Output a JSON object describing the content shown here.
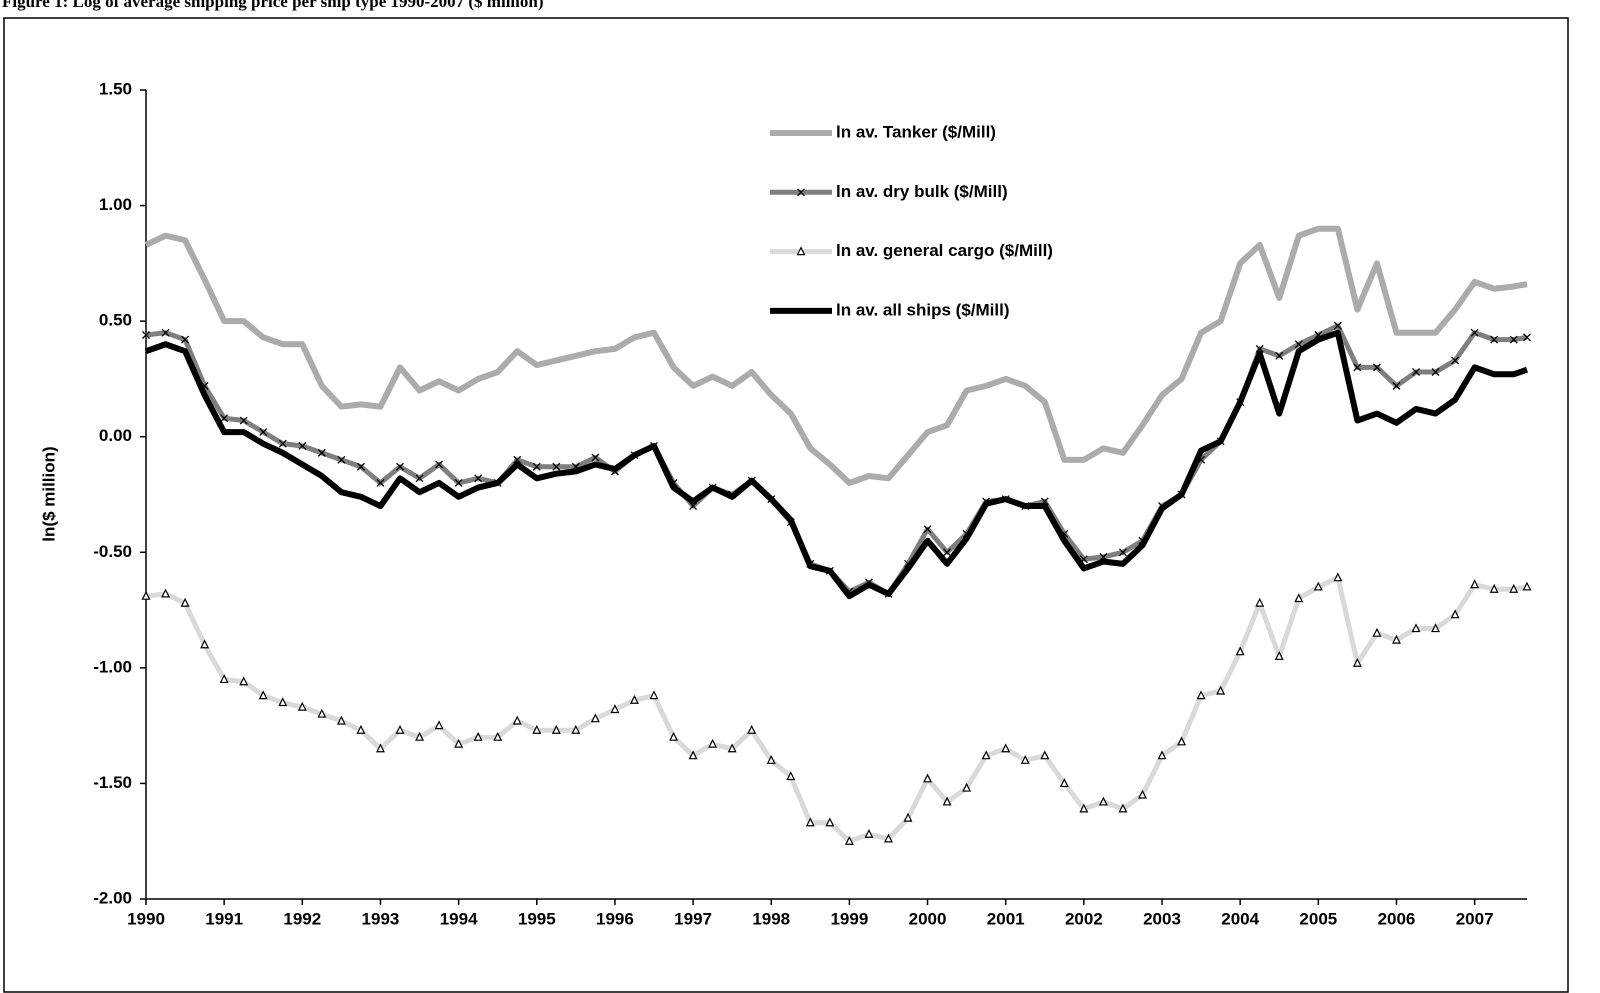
{
  "chart_data": {
    "type": "line",
    "title": "Figure 1: Log of average shipping price per ship type 1990-2007 ($ million)",
    "y_label": "ln($ million)",
    "x": [
      1990,
      1990.25,
      1990.5,
      1990.75,
      1991,
      1991.25,
      1991.5,
      1991.75,
      1992,
      1992.25,
      1992.5,
      1992.75,
      1993,
      1993.25,
      1993.5,
      1993.75,
      1994,
      1994.25,
      1994.5,
      1994.75,
      1995,
      1995.25,
      1995.5,
      1995.75,
      1996,
      1996.25,
      1996.5,
      1996.75,
      1997,
      1997.25,
      1997.5,
      1997.75,
      1998,
      1998.25,
      1998.5,
      1998.75,
      1999,
      1999.25,
      1999.5,
      1999.75,
      2000,
      2000.25,
      2000.5,
      2000.75,
      2001,
      2001.25,
      2001.5,
      2001.75,
      2002,
      2002.25,
      2002.5,
      2002.75,
      2003,
      2003.25,
      2003.5,
      2003.75,
      2004,
      2004.25,
      2004.5,
      2004.75,
      2005,
      2005.25,
      2005.5,
      2005.75,
      2006,
      2006.25,
      2006.5,
      2006.75,
      2007,
      2007.25,
      2007.5,
      2007.67
    ],
    "series": [
      {
        "name": "ln av. Tanker ($/Mill)",
        "color": "#ababab",
        "values": [
          0.83,
          0.87,
          0.85,
          0.68,
          0.5,
          0.5,
          0.43,
          0.4,
          0.4,
          0.22,
          0.13,
          0.14,
          0.13,
          0.3,
          0.2,
          0.24,
          0.2,
          0.25,
          0.28,
          0.37,
          0.31,
          0.33,
          0.35,
          0.37,
          0.38,
          0.43,
          0.45,
          0.3,
          0.22,
          0.26,
          0.22,
          0.28,
          0.18,
          0.1,
          -0.05,
          -0.12,
          -0.2,
          -0.17,
          -0.18,
          -0.08,
          0.02,
          0.05,
          0.2,
          0.22,
          0.25,
          0.22,
          0.15,
          -0.1,
          -0.1,
          -0.05,
          -0.07,
          0.05,
          0.18,
          0.25,
          0.45,
          0.5,
          0.75,
          0.83,
          0.6,
          0.87,
          0.9,
          0.9,
          0.55,
          0.75,
          0.45,
          0.45,
          0.45,
          0.55,
          0.67,
          0.64,
          0.65,
          0.66
        ]
      },
      {
        "name": "ln av. dry bulk ($/Mill)",
        "color": "#7f7f7f",
        "marker": "x",
        "values": [
          0.44,
          0.45,
          0.42,
          0.22,
          0.08,
          0.07,
          0.02,
          -0.03,
          -0.04,
          -0.07,
          -0.1,
          -0.13,
          -0.2,
          -0.13,
          -0.18,
          -0.12,
          -0.2,
          -0.18,
          -0.2,
          -0.1,
          -0.13,
          -0.13,
          -0.13,
          -0.09,
          -0.15,
          -0.08,
          -0.04,
          -0.2,
          -0.3,
          -0.22,
          -0.25,
          -0.19,
          -0.27,
          -0.37,
          -0.55,
          -0.58,
          -0.67,
          -0.63,
          -0.68,
          -0.55,
          -0.4,
          -0.5,
          -0.42,
          -0.28,
          -0.27,
          -0.3,
          -0.28,
          -0.42,
          -0.53,
          -0.52,
          -0.5,
          -0.45,
          -0.3,
          -0.25,
          -0.1,
          -0.02,
          0.15,
          0.38,
          0.35,
          0.4,
          0.44,
          0.48,
          0.3,
          0.3,
          0.22,
          0.28,
          0.28,
          0.33,
          0.45,
          0.42,
          0.42,
          0.43
        ]
      },
      {
        "name": "ln av. general cargo ($/Mill)",
        "color": "#d9d9d9",
        "marker": "triangle",
        "values": [
          -0.69,
          -0.68,
          -0.72,
          -0.9,
          -1.05,
          -1.06,
          -1.12,
          -1.15,
          -1.17,
          -1.2,
          -1.23,
          -1.27,
          -1.35,
          -1.27,
          -1.3,
          -1.25,
          -1.33,
          -1.3,
          -1.3,
          -1.23,
          -1.27,
          -1.27,
          -1.27,
          -1.22,
          -1.18,
          -1.14,
          -1.12,
          -1.3,
          -1.38,
          -1.33,
          -1.35,
          -1.27,
          -1.4,
          -1.47,
          -1.67,
          -1.67,
          -1.75,
          -1.72,
          -1.74,
          -1.65,
          -1.48,
          -1.58,
          -1.52,
          -1.38,
          -1.35,
          -1.4,
          -1.38,
          -1.5,
          -1.61,
          -1.58,
          -1.61,
          -1.55,
          -1.38,
          -1.32,
          -1.12,
          -1.1,
          -0.93,
          -0.72,
          -0.95,
          -0.7,
          -0.65,
          -0.61,
          -0.98,
          -0.85,
          -0.88,
          -0.83,
          -0.83,
          -0.77,
          -0.64,
          -0.66,
          -0.66,
          -0.65
        ]
      },
      {
        "name": "ln av. all ships ($/Mill)",
        "color": "#000000",
        "values": [
          0.37,
          0.4,
          0.37,
          0.18,
          0.02,
          0.02,
          -0.03,
          -0.07,
          -0.12,
          -0.17,
          -0.24,
          -0.26,
          -0.3,
          -0.18,
          -0.24,
          -0.2,
          -0.26,
          -0.22,
          -0.2,
          -0.12,
          -0.18,
          -0.16,
          -0.15,
          -0.12,
          -0.14,
          -0.08,
          -0.04,
          -0.22,
          -0.28,
          -0.22,
          -0.26,
          -0.19,
          -0.27,
          -0.36,
          -0.56,
          -0.58,
          -0.69,
          -0.64,
          -0.68,
          -0.57,
          -0.45,
          -0.55,
          -0.44,
          -0.29,
          -0.27,
          -0.3,
          -0.3,
          -0.45,
          -0.57,
          -0.54,
          -0.55,
          -0.47,
          -0.31,
          -0.25,
          -0.06,
          -0.02,
          0.15,
          0.36,
          0.1,
          0.37,
          0.42,
          0.45,
          0.07,
          0.1,
          0.06,
          0.12,
          0.1,
          0.16,
          0.3,
          0.27,
          0.27,
          0.29
        ]
      }
    ],
    "xlim": [
      1990,
      2007.67
    ],
    "xticks": [
      1990,
      1991,
      1992,
      1993,
      1994,
      1995,
      1996,
      1997,
      1998,
      1999,
      2000,
      2001,
      2002,
      2003,
      2004,
      2005,
      2006,
      2007
    ],
    "ylim": [
      -2,
      1.5
    ],
    "yticks": [
      {
        "value": 1.5,
        "label": "1.50"
      },
      {
        "value": 1,
        "label": "1.00"
      },
      {
        "value": 0.5,
        "label": "0.50"
      },
      {
        "value": 0,
        "label": "0.00"
      },
      {
        "value": -0.5,
        "label": "-0.50"
      },
      {
        "value": -1,
        "label": "-1.00"
      },
      {
        "value": -1.5,
        "label": "-1.50"
      },
      {
        "value": -2,
        "label": "-2.00"
      }
    ],
    "grid": false
  }
}
